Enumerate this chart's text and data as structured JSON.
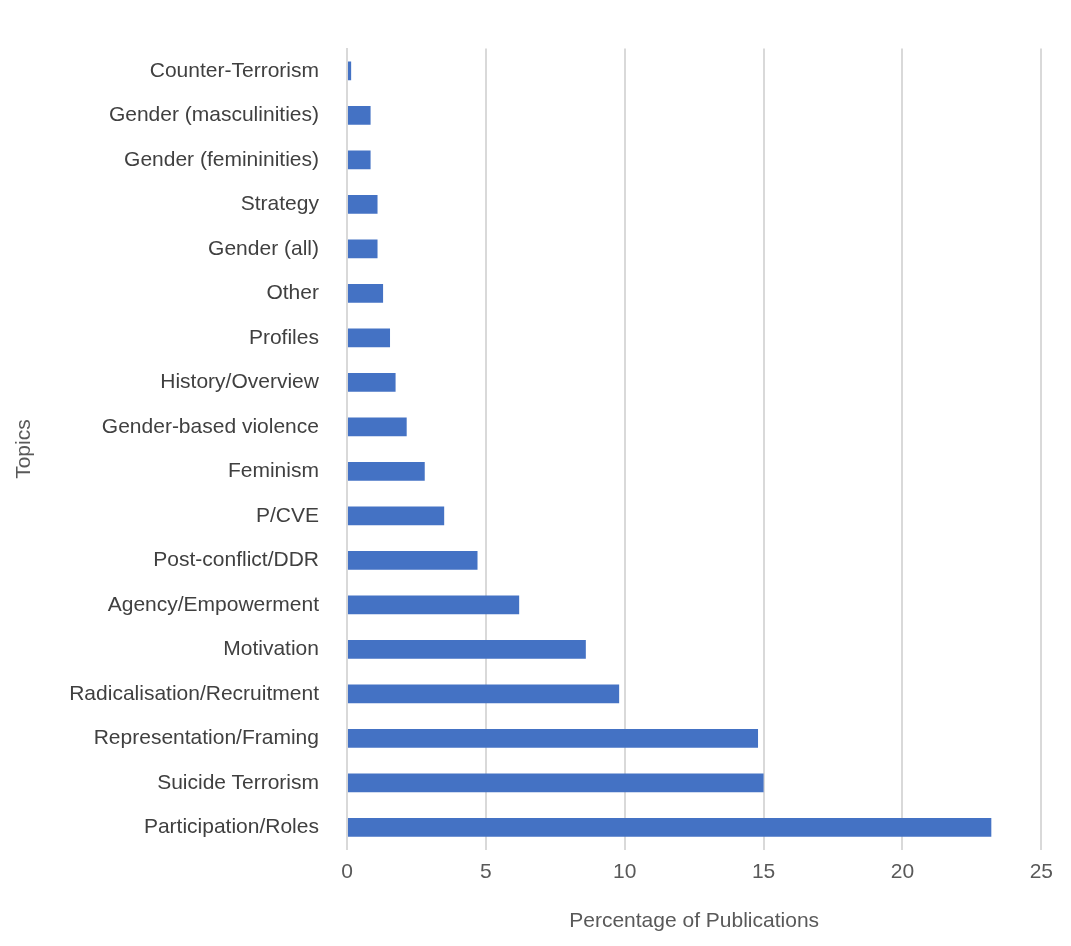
{
  "chart_data": {
    "type": "bar",
    "orientation": "horizontal",
    "xlabel": "Percentage of Publications",
    "ylabel": "Topics",
    "categories": [
      "Counter-Terrorism",
      "Gender (masculinities)",
      "Gender (femininities)",
      "Strategy",
      "Gender (all)",
      "Other",
      "Profiles",
      "History/Overview",
      "Gender-based violence",
      "Feminism",
      "P/CVE",
      "Post-conflict/DDR",
      "Agency/Empowerment",
      "Motivation",
      "Radicalisation/Recruitment",
      "Representation/Framing",
      "Suicide Terrorism",
      "Participation/Roles"
    ],
    "values": [
      0.15,
      0.85,
      0.85,
      1.1,
      1.1,
      1.3,
      1.55,
      1.75,
      2.15,
      2.8,
      3.5,
      4.7,
      6.2,
      8.6,
      9.8,
      14.8,
      15.0,
      23.2
    ],
    "color": "#4472c4",
    "xlim": [
      0,
      25
    ],
    "xticks": [
      0,
      5,
      10,
      15,
      20,
      25
    ],
    "grid": "x",
    "legend": false
  }
}
